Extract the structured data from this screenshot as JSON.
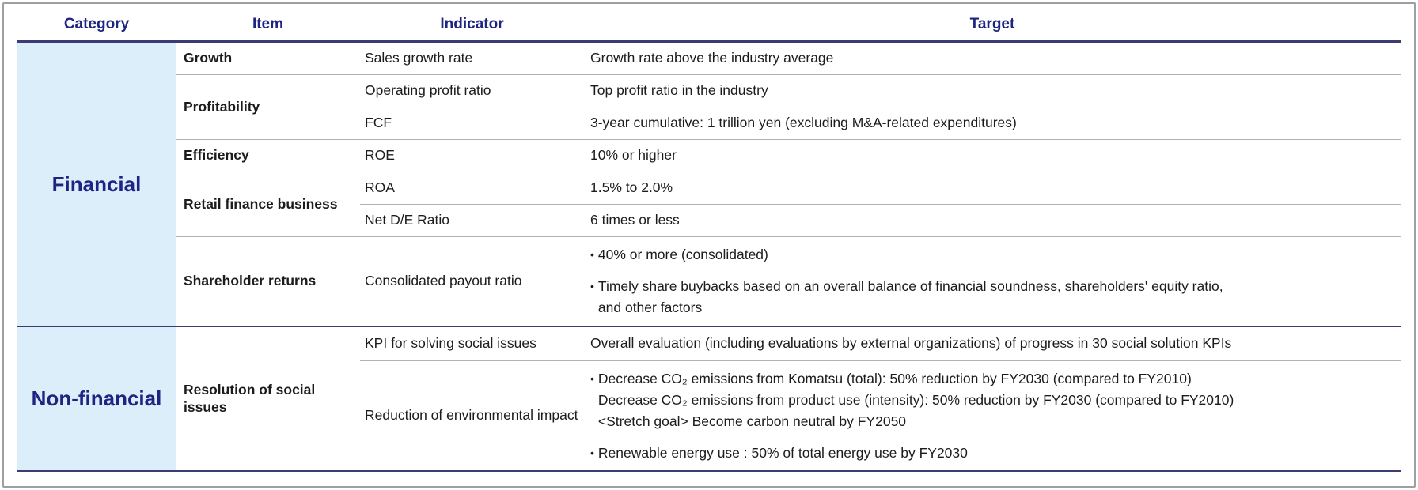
{
  "page": {
    "bullet_char": "•"
  },
  "header": {
    "category": "Category",
    "item": "Item",
    "indicator": "Indicator",
    "target": "Target"
  },
  "financial": {
    "label": "Financial",
    "growth": {
      "item": "Growth",
      "indicator": "Sales growth rate",
      "target": "Growth rate above the industry average"
    },
    "profitability": {
      "item": "Profitability",
      "operating": {
        "indicator": "Operating profit ratio",
        "target": "Top profit ratio in the industry"
      },
      "fcf": {
        "indicator": "FCF",
        "target": "3-year cumulative: 1 trillion yen (excluding M&A-related expenditures)"
      }
    },
    "efficiency": {
      "item": "Efficiency",
      "indicator": "ROE",
      "target": "10% or higher"
    },
    "retail_finance": {
      "item": "Retail finance business",
      "roa": {
        "indicator": "ROA",
        "target": "1.5% to 2.0%"
      },
      "net_de": {
        "indicator": "Net D/E Ratio",
        "target": "6 times or less"
      }
    },
    "shareholder_returns": {
      "item": "Shareholder returns",
      "indicator": "Consolidated payout ratio",
      "bullet1": "40% or more (consolidated)",
      "bullet2_line1": "Timely share buybacks based on an overall balance of financial soundness, shareholders' equity ratio,",
      "bullet2_line2": "and other factors"
    }
  },
  "non_financial": {
    "label": "Non-financial",
    "item": "Resolution of social issues",
    "kpi": {
      "indicator": "KPI for solving social issues",
      "target": "Overall evaluation (including evaluations by external organizations) of progress in 30 social solution KPIs"
    },
    "environment": {
      "indicator": "Reduction of environmental impact",
      "bullet1_line1": "Decrease CO₂ emissions from Komatsu (total): 50% reduction by FY2030 (compared to FY2010)",
      "bullet1_line2": "Decrease CO₂ emissions from product use (intensity): 50% reduction by FY2030 (compared to FY2010)",
      "bullet1_line3": "<Stretch goal> Become carbon neutral by FY2050",
      "bullet2": "Renewable energy use : 50% of total energy use by FY2030"
    }
  },
  "colors": {
    "navy_text": "#1d2583",
    "navy_line": "#3c3c74",
    "category_bg": "#ddeefb",
    "divider_gray": "#b3b3b3"
  }
}
